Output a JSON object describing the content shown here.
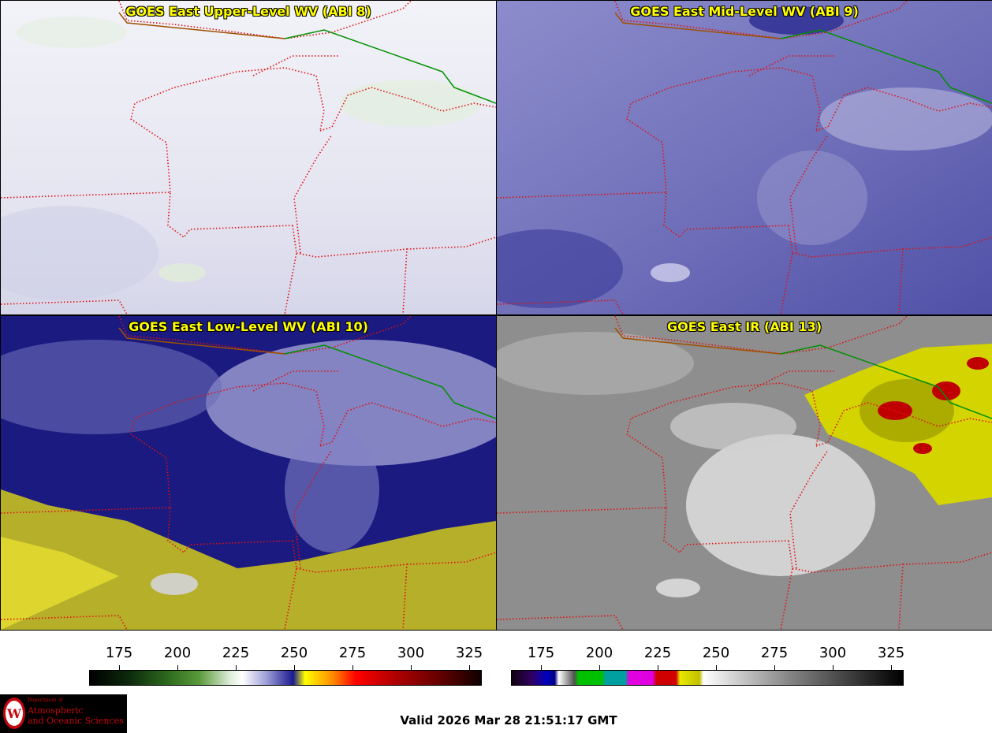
{
  "panels": [
    {
      "title": "GOES East Upper-Level WV (ABI 8)"
    },
    {
      "title": "GOES East Mid-Level WV (ABI 9)"
    },
    {
      "title": "GOES East Low-Level WV (ABI 10)"
    },
    {
      "title": "GOES East IR (ABI 13)"
    }
  ],
  "colorbars": [
    {
      "ticks": [
        "175",
        "200",
        "225",
        "250",
        "275",
        "300",
        "325"
      ]
    },
    {
      "ticks": [
        "175",
        "200",
        "225",
        "250",
        "275",
        "300",
        "325"
      ]
    }
  ],
  "logo": {
    "dept": "Department of",
    "line1": "Atmospheric",
    "line2": "and Oceanic Sciences"
  },
  "valid_time": "Valid 2026 Mar 28 21:51:17 GMT",
  "colors": {
    "title_text": "#ffff00",
    "state_border": "#e01010",
    "country_border": "#009000"
  }
}
